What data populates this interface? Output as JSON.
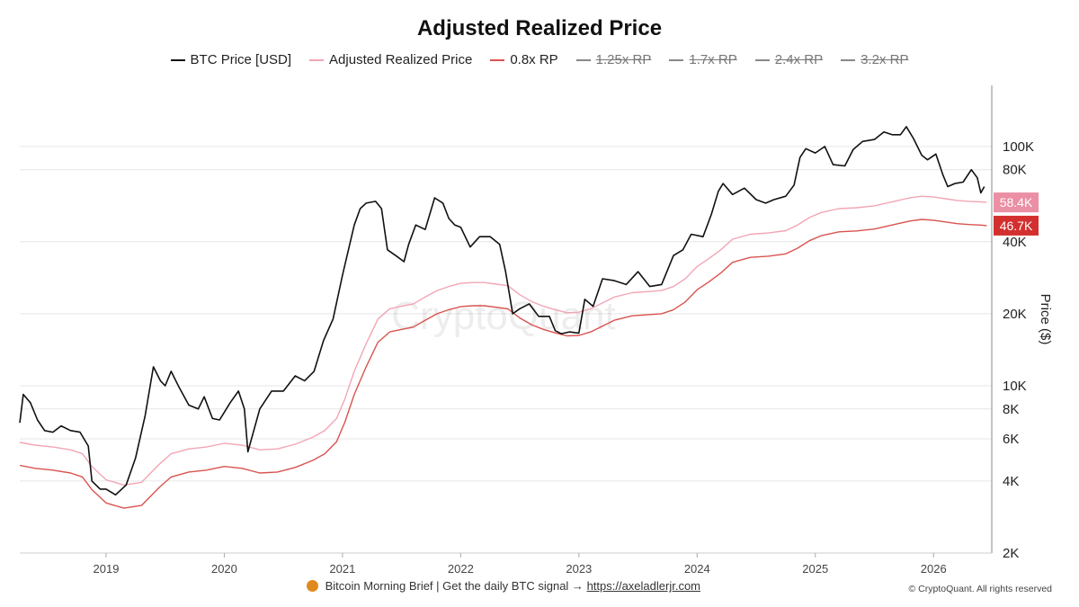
{
  "colors": {
    "btc": "#111111",
    "rp": "#f2a6b4",
    "rp08": "#d9534f",
    "disabled": "#888888",
    "rp_badge": "#ea8fa4",
    "rp08_badge": "#d32f2f",
    "grid": "#e6e6e6"
  },
  "legend": [
    {
      "label": "BTC Price [USD]",
      "color": "#111111",
      "disabled": false
    },
    {
      "label": "Adjusted Realized Price",
      "color": "#f2a6b4",
      "disabled": false
    },
    {
      "label": "0.8x RP",
      "color": "#d9534f",
      "disabled": false
    },
    {
      "label": "1.25x RP",
      "color": "#888888",
      "disabled": true
    },
    {
      "label": "1.7x RP",
      "color": "#888888",
      "disabled": true
    },
    {
      "label": "2.4x RP",
      "color": "#888888",
      "disabled": true
    },
    {
      "label": "3.2x RP",
      "color": "#888888",
      "disabled": true
    }
  ],
  "footer": {
    "brief_text": "Bitcoin Morning Brief | Get the daily BTC signal →",
    "brief_link": "https://axeladlerjr.com",
    "copyright": "© CryptoQuant. All rights reserved",
    "watermark": "CryptoQuant"
  },
  "chart_data": {
    "type": "line",
    "title": "Adjusted Realized Price",
    "ylabel": "Price ($)",
    "y_scale": "log",
    "ylim": [
      2000,
      180000
    ],
    "xlim": [
      2018.27,
      2026.47
    ],
    "x_ticks": [
      {
        "label": "2019",
        "x": 2019.0
      },
      {
        "label": "2020",
        "x": 2020.0
      },
      {
        "label": "2021",
        "x": 2021.0
      },
      {
        "label": "2022",
        "x": 2022.0
      },
      {
        "label": "2023",
        "x": 2023.0
      },
      {
        "label": "2024",
        "x": 2024.0
      },
      {
        "label": "2025",
        "x": 2025.0
      },
      {
        "label": "2026",
        "x": 2026.0
      }
    ],
    "y_ticks": [
      {
        "label": "2K",
        "v": 2000
      },
      {
        "label": "4K",
        "v": 4000
      },
      {
        "label": "6K",
        "v": 6000
      },
      {
        "label": "8K",
        "v": 8000
      },
      {
        "label": "10K",
        "v": 10000
      },
      {
        "label": "20K",
        "v": 20000
      },
      {
        "label": "40K",
        "v": 40000
      },
      {
        "label": "80K",
        "v": 80000
      },
      {
        "label": "100K",
        "v": 100000
      }
    ],
    "grid": true,
    "last_value_labels": [
      {
        "label": "58.4K",
        "value": 58400,
        "series": "Adjusted Realized Price"
      },
      {
        "label": "46.7K",
        "value": 46700,
        "series": "0.8x RP"
      }
    ],
    "series": [
      {
        "name": "BTC Price [USD]",
        "x": [
          2018.27,
          2018.3,
          2018.36,
          2018.42,
          2018.48,
          2018.55,
          2018.62,
          2018.7,
          2018.78,
          2018.85,
          2018.88,
          2018.95,
          2019.0,
          2019.08,
          2019.17,
          2019.25,
          2019.33,
          2019.4,
          2019.46,
          2019.5,
          2019.55,
          2019.62,
          2019.7,
          2019.78,
          2019.83,
          2019.9,
          2019.96,
          2020.05,
          2020.12,
          2020.17,
          2020.2,
          2020.3,
          2020.4,
          2020.5,
          2020.6,
          2020.68,
          2020.76,
          2020.84,
          2020.92,
          2021.0,
          2021.05,
          2021.1,
          2021.15,
          2021.2,
          2021.28,
          2021.33,
          2021.38,
          2021.45,
          2021.52,
          2021.56,
          2021.62,
          2021.7,
          2021.78,
          2021.85,
          2021.9,
          2021.95,
          2022.0,
          2022.08,
          2022.16,
          2022.25,
          2022.33,
          2022.38,
          2022.44,
          2022.5,
          2022.58,
          2022.66,
          2022.75,
          2022.8,
          2022.85,
          2022.92,
          2023.0,
          2023.05,
          2023.12,
          2023.2,
          2023.3,
          2023.4,
          2023.5,
          2023.6,
          2023.7,
          2023.8,
          2023.88,
          2023.95,
          2024.05,
          2024.12,
          2024.18,
          2024.22,
          2024.3,
          2024.4,
          2024.5,
          2024.58,
          2024.65,
          2024.75,
          2024.82,
          2024.87,
          2024.92,
          2025.0,
          2025.08,
          2025.15,
          2025.25,
          2025.32,
          2025.4,
          2025.5,
          2025.58,
          2025.65,
          2025.72,
          2025.77,
          2025.83,
          2025.9,
          2025.95,
          2026.02,
          2026.08,
          2026.12,
          2026.18,
          2026.25,
          2026.32,
          2026.37,
          2026.4,
          2026.43
        ],
        "values": [
          7000,
          9200,
          8500,
          7200,
          6500,
          6400,
          6800,
          6500,
          6400,
          5600,
          4000,
          3700,
          3700,
          3500,
          3850,
          5000,
          7500,
          12000,
          10500,
          10000,
          11500,
          9800,
          8300,
          8000,
          9000,
          7300,
          7200,
          8500,
          9500,
          8000,
          5300,
          8000,
          9500,
          9500,
          11000,
          10500,
          11500,
          15500,
          19000,
          29000,
          37000,
          47000,
          55000,
          58000,
          59000,
          55000,
          37000,
          35000,
          33000,
          39000,
          47000,
          45000,
          61000,
          58000,
          50000,
          47000,
          46000,
          38000,
          42000,
          42000,
          39000,
          30000,
          20000,
          21000,
          22000,
          19500,
          19500,
          17000,
          16500,
          16800,
          16600,
          23000,
          21500,
          28000,
          27500,
          26500,
          30000,
          26000,
          26500,
          35000,
          37000,
          43000,
          42000,
          52000,
          65000,
          70000,
          63000,
          67000,
          60000,
          58000,
          60000,
          62000,
          69000,
          90000,
          98000,
          94000,
          100000,
          84000,
          83000,
          97000,
          105000,
          107000,
          115000,
          112000,
          112000,
          121000,
          108000,
          92000,
          88000,
          93000,
          76000,
          68000,
          70000,
          71000,
          80000,
          74000,
          64000,
          68000
        ]
      },
      {
        "name": "Adjusted Realized Price",
        "x": [
          2018.27,
          2018.4,
          2018.55,
          2018.7,
          2018.8,
          2018.88,
          2019.0,
          2019.15,
          2019.3,
          2019.45,
          2019.55,
          2019.7,
          2019.85,
          2020.0,
          2020.15,
          2020.3,
          2020.45,
          2020.6,
          2020.75,
          2020.85,
          2020.95,
          2021.02,
          2021.1,
          2021.2,
          2021.3,
          2021.4,
          2021.5,
          2021.6,
          2021.7,
          2021.8,
          2021.9,
          2022.0,
          2022.1,
          2022.2,
          2022.3,
          2022.4,
          2022.5,
          2022.6,
          2022.7,
          2022.8,
          2022.9,
          2023.0,
          2023.1,
          2023.2,
          2023.3,
          2023.45,
          2023.6,
          2023.7,
          2023.8,
          2023.9,
          2024.0,
          2024.1,
          2024.2,
          2024.3,
          2024.45,
          2024.6,
          2024.75,
          2024.85,
          2024.95,
          2025.05,
          2025.2,
          2025.35,
          2025.5,
          2025.6,
          2025.7,
          2025.8,
          2025.9,
          2026.0,
          2026.1,
          2026.2,
          2026.3,
          2026.4,
          2026.45
        ],
        "values": [
          5800,
          5650,
          5550,
          5400,
          5200,
          4600,
          4050,
          3850,
          3950,
          4700,
          5200,
          5450,
          5550,
          5750,
          5650,
          5400,
          5450,
          5700,
          6100,
          6500,
          7300,
          8800,
          11500,
          15000,
          19000,
          21000,
          21500,
          22000,
          23500,
          25000,
          26000,
          26800,
          27000,
          27000,
          26600,
          26200,
          24000,
          22500,
          21500,
          20800,
          20200,
          20300,
          21000,
          22200,
          23500,
          24500,
          24800,
          25000,
          26000,
          28000,
          31500,
          34000,
          37000,
          41000,
          43000,
          43500,
          44500,
          47000,
          50500,
          53000,
          55000,
          55500,
          56500,
          58000,
          59500,
          61000,
          62000,
          61500,
          60500,
          59500,
          59000,
          58700,
          58400
        ]
      },
      {
        "name": "0.8x RP",
        "x": [
          2018.27,
          2018.4,
          2018.55,
          2018.7,
          2018.8,
          2018.88,
          2019.0,
          2019.15,
          2019.3,
          2019.45,
          2019.55,
          2019.7,
          2019.85,
          2020.0,
          2020.15,
          2020.3,
          2020.45,
          2020.6,
          2020.75,
          2020.85,
          2020.95,
          2021.02,
          2021.1,
          2021.2,
          2021.3,
          2021.4,
          2021.5,
          2021.6,
          2021.7,
          2021.8,
          2021.9,
          2022.0,
          2022.1,
          2022.2,
          2022.3,
          2022.4,
          2022.5,
          2022.6,
          2022.7,
          2022.8,
          2022.9,
          2023.0,
          2023.1,
          2023.2,
          2023.3,
          2023.45,
          2023.6,
          2023.7,
          2023.8,
          2023.9,
          2024.0,
          2024.1,
          2024.2,
          2024.3,
          2024.45,
          2024.6,
          2024.75,
          2024.85,
          2024.95,
          2025.05,
          2025.2,
          2025.35,
          2025.5,
          2025.6,
          2025.7,
          2025.8,
          2025.9,
          2026.0,
          2026.1,
          2026.2,
          2026.3,
          2026.4,
          2026.45
        ],
        "values": [
          4650,
          4520,
          4440,
          4320,
          4160,
          3680,
          3240,
          3080,
          3160,
          3760,
          4160,
          4360,
          4440,
          4600,
          4520,
          4320,
          4360,
          4560,
          4880,
          5200,
          5840,
          7040,
          9200,
          12000,
          15200,
          16800,
          17200,
          17600,
          18800,
          20000,
          20800,
          21440,
          21600,
          21600,
          21280,
          20960,
          19200,
          18000,
          17200,
          16640,
          16160,
          16240,
          16800,
          17760,
          18800,
          19600,
          19840,
          20000,
          20800,
          22400,
          25200,
          27200,
          29600,
          32800,
          34400,
          34800,
          35600,
          37600,
          40400,
          42400,
          44000,
          44400,
          45200,
          46400,
          47600,
          48800,
          49600,
          49200,
          48400,
          47600,
          47200,
          46960,
          46700
        ]
      }
    ]
  }
}
